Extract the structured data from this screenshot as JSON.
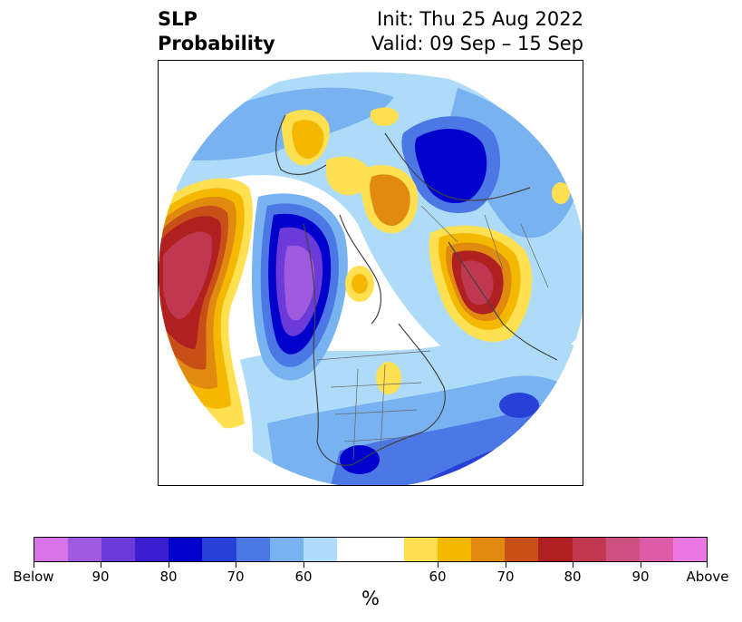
{
  "title": {
    "left_line1": "SLP",
    "left_line2": "Probability",
    "right_line1": "Init: Thu 25 Aug 2022",
    "right_line2": "Valid: 09 Sep – 15 Sep"
  },
  "colorbar": {
    "colors": [
      "#d974e8",
      "#a05ae0",
      "#6b3ad8",
      "#3a1ed0",
      "#0000cc",
      "#2640d8",
      "#4c78e6",
      "#78b2f0",
      "#aedcf8",
      "#ffffff",
      "#ffffff",
      "#ffe050",
      "#f4b800",
      "#e08a10",
      "#c85018",
      "#b02020",
      "#c03850",
      "#cc5080",
      "#dc5ca8",
      "#e878e0"
    ],
    "tick_labels": [
      "Below",
      "90",
      "80",
      "70",
      "60",
      "60",
      "70",
      "80",
      "90",
      "Above"
    ],
    "unit": "%"
  },
  "map": {
    "projection": "north-polar-stereographic",
    "features": [
      {
        "name": "pacific-above-anomaly",
        "category": "above",
        "level": "above-90"
      },
      {
        "name": "western-canada-below-anomaly",
        "category": "below",
        "level": "below-90"
      },
      {
        "name": "central-russia-above-anomaly",
        "category": "above",
        "level": "above-80"
      },
      {
        "name": "arctic-siberia-below-anomaly",
        "category": "below",
        "level": "below-80"
      },
      {
        "name": "scandinavia-above-anomaly",
        "category": "above",
        "level": "above-70"
      },
      {
        "name": "southern-us-below-anomaly",
        "category": "below",
        "level": "below-80"
      }
    ]
  }
}
